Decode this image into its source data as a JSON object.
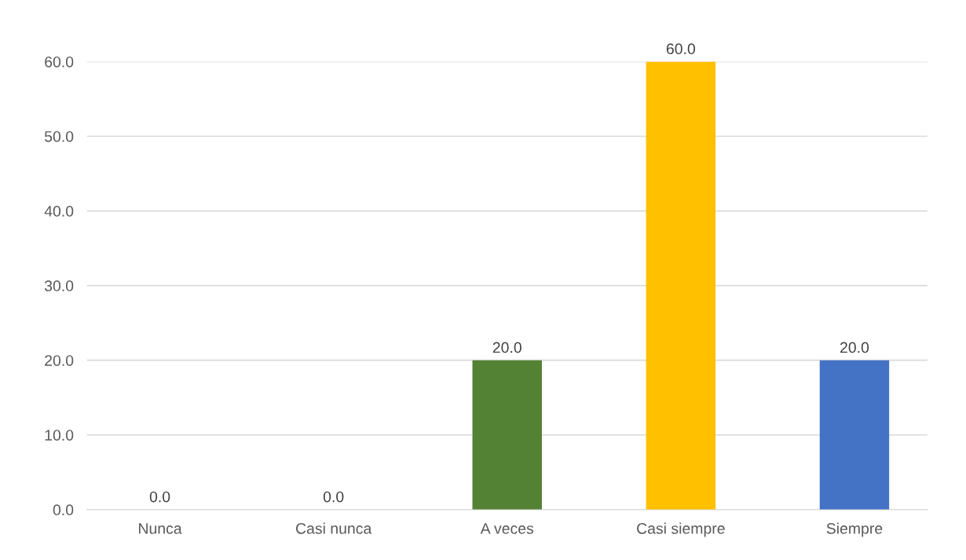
{
  "chart_data": {
    "type": "bar",
    "categories": [
      "Nunca",
      "Casi nunca",
      "A veces",
      "Casi siempre",
      "Siempre"
    ],
    "values": [
      0.0,
      0.0,
      20.0,
      60.0,
      20.0
    ],
    "colors": [
      "#c00000",
      "#c55a11",
      "#548235",
      "#ffc000",
      "#4472c4"
    ],
    "ylim": [
      0,
      60
    ],
    "yticks": [
      {
        "value": 0,
        "label": "0.0"
      },
      {
        "value": 10,
        "label": "10.0"
      },
      {
        "value": 20,
        "label": "20.0"
      },
      {
        "value": 30,
        "label": "30.0"
      },
      {
        "value": 40,
        "label": "40.0"
      },
      {
        "value": 50,
        "label": "50.0"
      },
      {
        "value": 60,
        "label": "60.0"
      }
    ],
    "grid": "y",
    "value_labels": [
      "0.0",
      "0.0",
      "20.0",
      "60.0",
      "20.0"
    ]
  }
}
